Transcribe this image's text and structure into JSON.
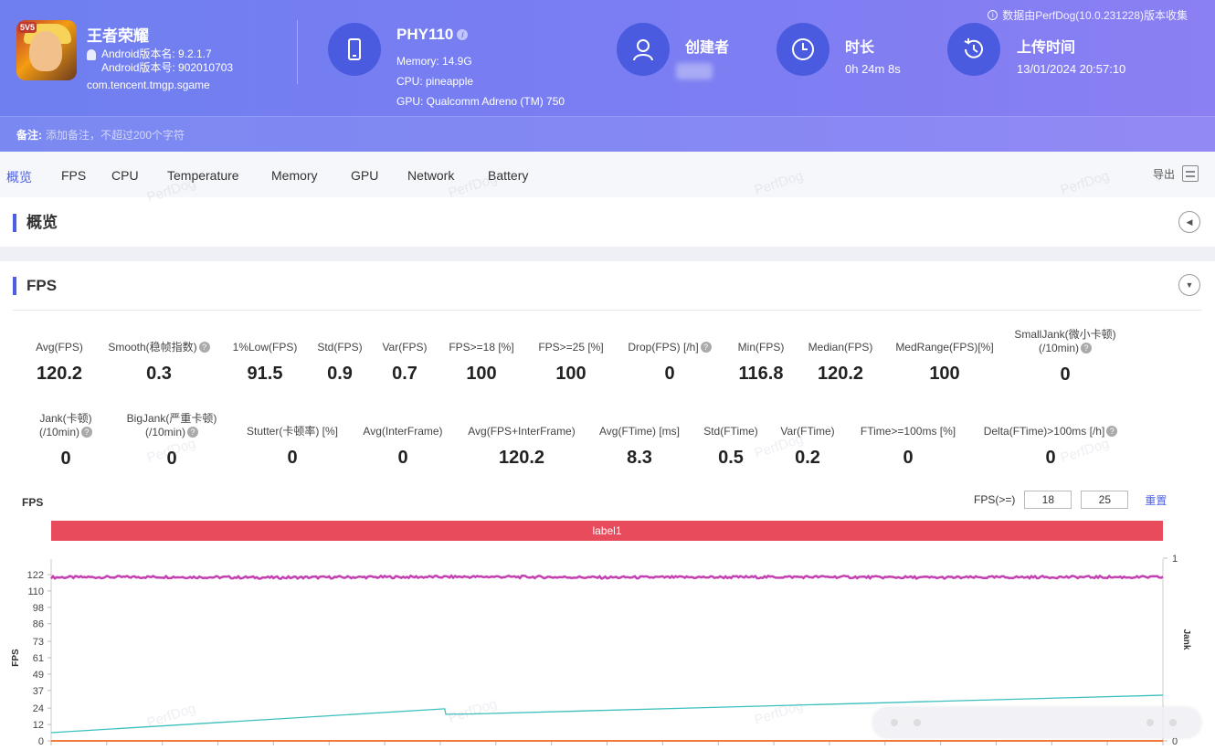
{
  "app": {
    "name": "王者荣耀",
    "icon_badge": "5V5",
    "android_version_name": "Android版本名: 9.2.1.7",
    "android_version_code": "Android版本号: 902010703",
    "package": "com.tencent.tmgp.sgame"
  },
  "device": {
    "model": "PHY110",
    "memory": "Memory: 14.9G",
    "cpu": "CPU: pineapple",
    "gpu": "GPU: Qualcomm Adreno (TM) 750"
  },
  "creator": {
    "title": "创建者"
  },
  "duration": {
    "title": "时长",
    "value": "0h 24m 8s"
  },
  "upload": {
    "title": "上传时间",
    "value": "13/01/2024 20:57:10"
  },
  "source_note": "数据由PerfDog(10.0.231228)版本收集",
  "remark": {
    "label": "备注:",
    "placeholder": "添加备注，不超过200个字符"
  },
  "tabs": [
    "概览",
    "FPS",
    "CPU",
    "Temperature",
    "Memory",
    "GPU",
    "Network",
    "Battery"
  ],
  "export_label": "导出",
  "overview_panel": {
    "title": "概览"
  },
  "fps_panel": {
    "title": "FPS"
  },
  "stats_row1": [
    {
      "label": "Avg(FPS)",
      "value": "120.2"
    },
    {
      "label": "Smooth(稳帧指数)",
      "value": "0.3"
    },
    {
      "label": "1%Low(FPS)",
      "value": "91.5"
    },
    {
      "label": "Std(FPS)",
      "value": "0.9"
    },
    {
      "label": "Var(FPS)",
      "value": "0.7"
    },
    {
      "label": "FPS>=18 [%]",
      "value": "100"
    },
    {
      "label": "FPS>=25 [%]",
      "value": "100"
    },
    {
      "label": "Drop(FPS) [/h]",
      "value": "0"
    },
    {
      "label": "Min(FPS)",
      "value": "116.8"
    },
    {
      "label": "Median(FPS)",
      "value": "120.2"
    },
    {
      "label": "MedRange(FPS)[%]",
      "value": "100"
    },
    {
      "label": "SmallJank(微小卡顿)",
      "label2": "(/10min)",
      "value": "0"
    }
  ],
  "stats_row2": [
    {
      "label": "Jank(卡顿)",
      "label2": "(/10min)",
      "value": "0"
    },
    {
      "label": "BigJank(严重卡顿)",
      "label2": "(/10min)",
      "value": "0"
    },
    {
      "label": "Stutter(卡顿率) [%]",
      "value": "0"
    },
    {
      "label": "Avg(InterFrame)",
      "value": "0"
    },
    {
      "label": "Avg(FPS+InterFrame)",
      "value": "120.2"
    },
    {
      "label": "Avg(FTime) [ms]",
      "value": "8.3"
    },
    {
      "label": "Std(FTime)",
      "value": "0.5"
    },
    {
      "label": "Var(FTime)",
      "value": "0.2"
    },
    {
      "label": "FTime>=100ms [%]",
      "value": "0"
    },
    {
      "label": "Delta(FTime)>100ms [/h]",
      "value": "0"
    }
  ],
  "fps_chart_controls": {
    "label": "FPS(>=)",
    "threshold_1": "18",
    "threshold_2": "25",
    "reset": "重置"
  },
  "colors": {
    "accent": "#4b5ee4",
    "header": "#7b7ef2",
    "label_bar": "#e84c5c",
    "fps_line": "#c43fb2",
    "cyan_line": "#3cbfbf",
    "orange_line": "#f07a3c"
  },
  "watermark": "PerfDog",
  "chart_data": {
    "type": "line",
    "title": "FPS",
    "label_band": "label1",
    "ylabel": "FPS",
    "y2label": "Jank",
    "ylim": [
      0,
      122
    ],
    "y2lim": [
      0,
      1
    ],
    "y_ticks": [
      0,
      12,
      24,
      37,
      49,
      61,
      73,
      86,
      98,
      110,
      122
    ],
    "y2_ticks": [
      0,
      1
    ],
    "x_range": [
      0,
      1
    ],
    "series": [
      {
        "color": "#c43fb2",
        "x": [
          0,
          0.1,
          0.2,
          0.3,
          0.4,
          0.5,
          0.6,
          0.7,
          0.8,
          0.9,
          1.0
        ],
        "y": [
          120,
          120.3,
          119.8,
          120.2,
          120.4,
          119.9,
          120.1,
          120.3,
          119.8,
          120.2,
          120.1
        ]
      },
      {
        "color": "#3cbfbf",
        "x": [
          0,
          0.354,
          0.355,
          0.38,
          1.0
        ],
        "y": [
          6,
          23.5,
          19.5,
          19.8,
          33.5
        ]
      },
      {
        "color": "#f07a3c",
        "x": [
          0,
          1.0
        ],
        "y": [
          0,
          0
        ]
      }
    ]
  }
}
